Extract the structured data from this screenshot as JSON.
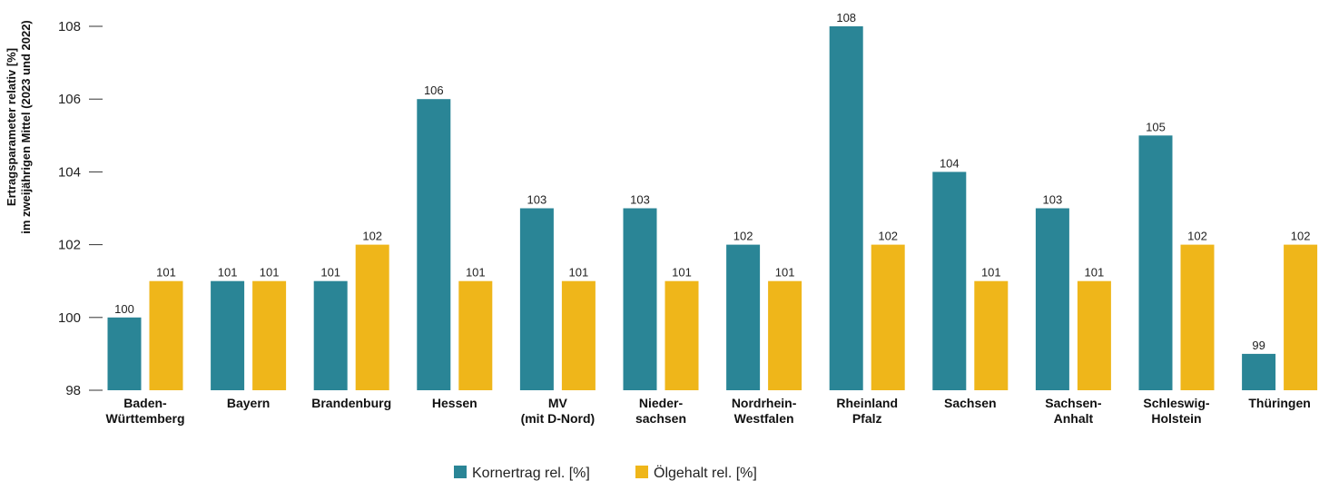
{
  "chart_data": {
    "type": "bar",
    "ylabel": [
      "Ertragsparameter relativ [%]",
      "im zweijährigen Mittel (2023 und 2022)"
    ],
    "ylim": [
      98,
      108
    ],
    "yticks": [
      98,
      100,
      102,
      104,
      106,
      108
    ],
    "categories": [
      [
        "Baden-",
        "Württemberg"
      ],
      [
        "Bayern"
      ],
      [
        "Brandenburg"
      ],
      [
        "Hessen"
      ],
      [
        "MV",
        "(mit D-Nord)"
      ],
      [
        "Nieder-",
        "sachsen"
      ],
      [
        "Nordrhein-",
        "Westfalen"
      ],
      [
        "Rheinland",
        "Pfalz"
      ],
      [
        "Sachsen"
      ],
      [
        "Sachsen-",
        "Anhalt"
      ],
      [
        "Schleswig-",
        "Holstein"
      ],
      [
        "Thüringen"
      ]
    ],
    "series": [
      {
        "name": "Kornertrag rel. [%]",
        "color": "#2a8596",
        "values": [
          100,
          101,
          101,
          106,
          103,
          103,
          102,
          108,
          104,
          103,
          105,
          99
        ]
      },
      {
        "name": "Ölgehalt rel. [%]",
        "color": "#efb61a",
        "values": [
          101,
          101,
          102,
          101,
          101,
          101,
          101,
          102,
          101,
          101,
          102,
          102
        ]
      }
    ],
    "legend_position": "bottom-center",
    "grid": false,
    "data_labels": true
  }
}
